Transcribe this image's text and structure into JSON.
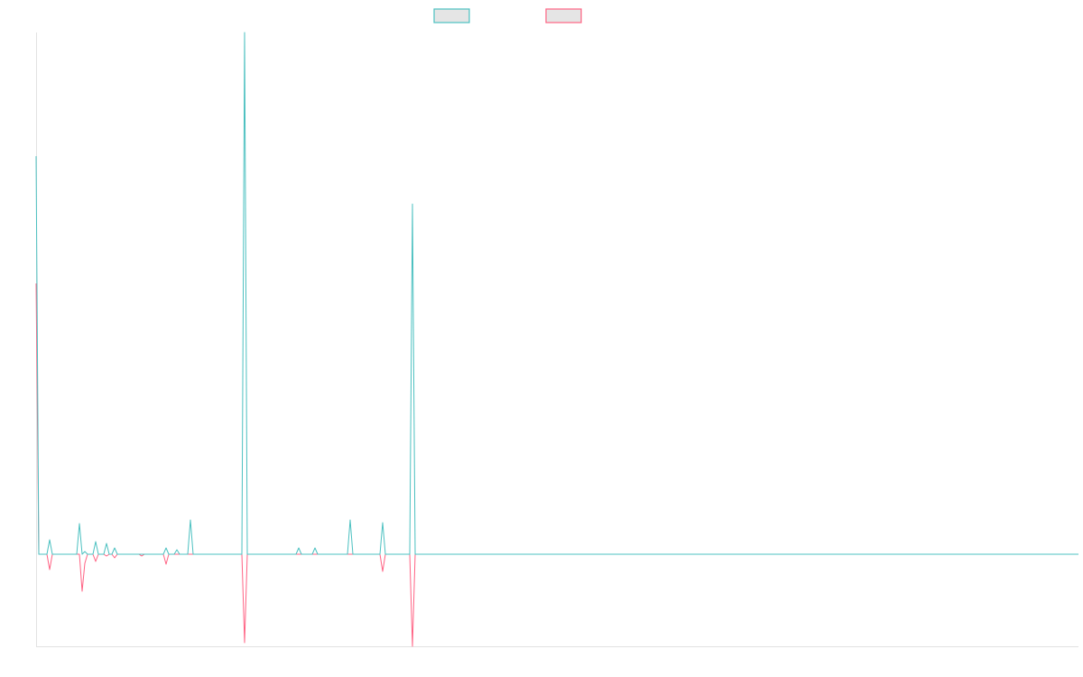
{
  "chart_data": {
    "type": "line",
    "title": "",
    "xlabel": "",
    "ylabel": "",
    "xlim": [
      0,
      385
    ],
    "ylim": [
      -102,
      578
    ],
    "grid": false,
    "legend_position": "top-center",
    "series": [
      {
        "name": "",
        "color": "#4bc0c0",
        "points": [
          [
            0,
            441
          ],
          [
            5,
            16
          ],
          [
            11,
            0
          ],
          [
            16,
            34
          ],
          [
            18,
            3
          ],
          [
            22,
            14
          ],
          [
            26,
            12
          ],
          [
            29,
            7
          ],
          [
            48,
            7
          ],
          [
            52,
            5
          ],
          [
            57,
            38
          ],
          [
            77,
            578
          ],
          [
            97,
            7
          ],
          [
            103,
            7
          ],
          [
            116,
            38
          ],
          [
            128,
            35
          ],
          [
            139,
            388
          ]
        ]
      },
      {
        "name": "",
        "color": "#ff6384",
        "points": [
          [
            0,
            300
          ],
          [
            5,
            -17
          ],
          [
            11,
            0
          ],
          [
            17,
            -41
          ],
          [
            18,
            -10
          ],
          [
            22,
            -8
          ],
          [
            26,
            -2
          ],
          [
            29,
            -4
          ],
          [
            39,
            -2
          ],
          [
            48,
            -11
          ],
          [
            77,
            -98
          ],
          [
            128,
            -19
          ],
          [
            139,
            -102
          ]
        ]
      }
    ]
  }
}
